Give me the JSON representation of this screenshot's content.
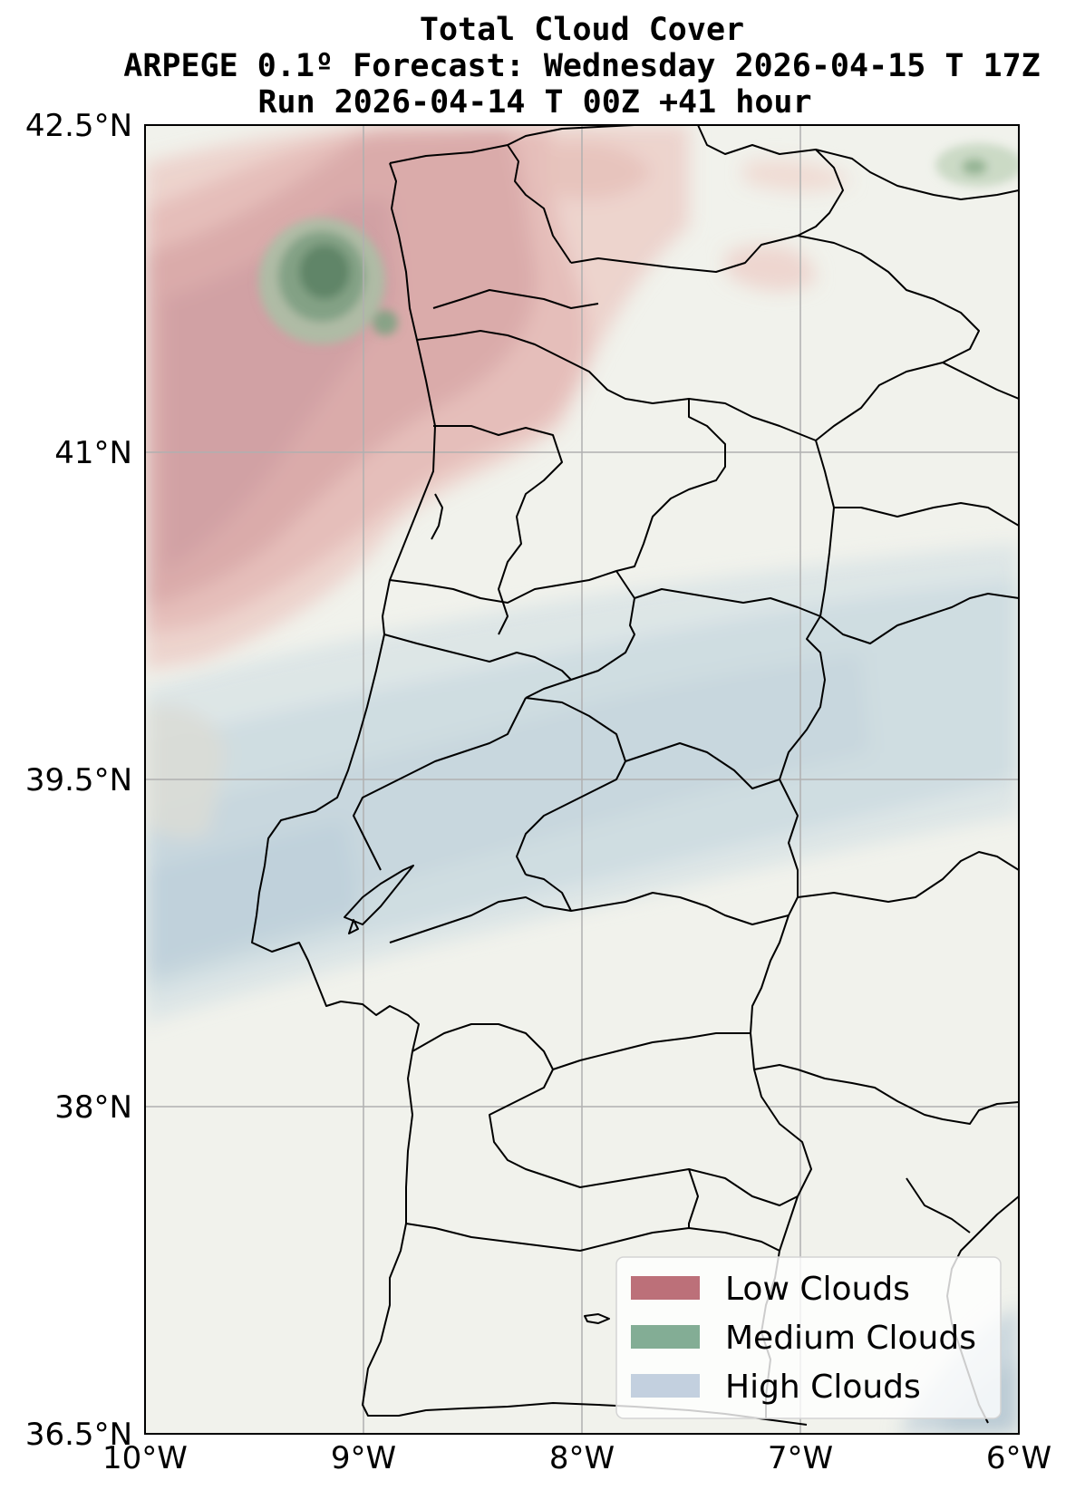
{
  "figure": {
    "title_lines": [
      "Total Cloud Cover",
      "ARPEGE 0.1º Forecast: Wednesday 2026-04-15 T 17Z",
      "Run 2026-04-14 T 00Z +41 hour"
    ]
  },
  "map": {
    "extent": {
      "lon_min": -10,
      "lon_max": -6,
      "lat_min": 36.5,
      "lat_max": 42.5
    },
    "x_ticks": [
      {
        "value": -10,
        "label": "10°W"
      },
      {
        "value": -9,
        "label": "9°W"
      },
      {
        "value": -8,
        "label": "8°W"
      },
      {
        "value": -7,
        "label": "7°W"
      },
      {
        "value": -6,
        "label": "6°W"
      }
    ],
    "y_ticks": [
      {
        "value": 42.5,
        "label": "42.5°N"
      },
      {
        "value": 41,
        "label": "41°N"
      },
      {
        "value": 39.5,
        "label": "39.5°N"
      },
      {
        "value": 38,
        "label": "38°N"
      },
      {
        "value": 36.5,
        "label": "36.5°N"
      }
    ],
    "grid": true,
    "background_color": "#f1f2ec"
  },
  "legend": {
    "placement": "bottom-right",
    "items": [
      {
        "label": "Low Clouds",
        "color": "#b5616a"
      },
      {
        "label": "Medium Clouds",
        "color": "#76a489"
      },
      {
        "label": "High Clouds",
        "color": "#bccbdb"
      }
    ]
  }
}
